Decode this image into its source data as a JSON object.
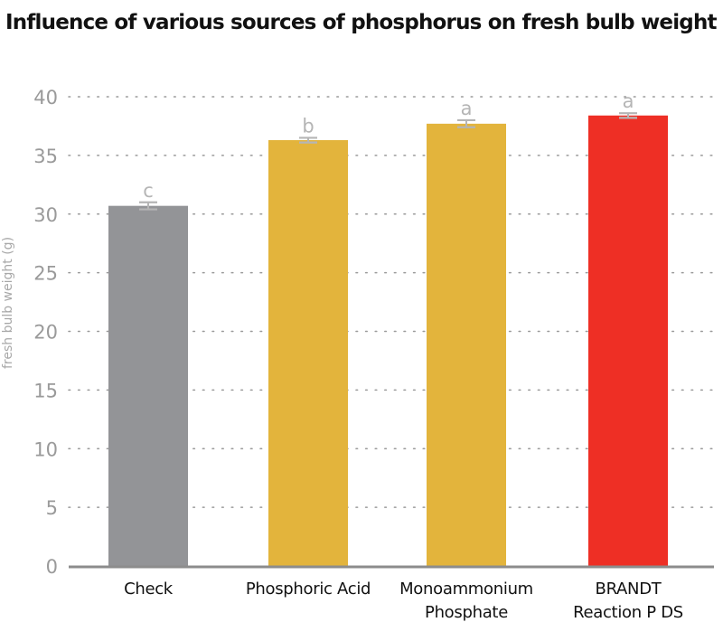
{
  "title": "Influence of various sources of phosphorus on fresh bulb weight",
  "chart_data": {
    "type": "bar",
    "title": "Influence of various sources of phosphorus on fresh bulb weight",
    "xlabel": "",
    "ylabel": "fresh bulb weight  (g)",
    "ylim": [
      0,
      40
    ],
    "yticks": [
      0,
      5,
      10,
      15,
      20,
      25,
      30,
      35,
      40
    ],
    "grid": true,
    "categories": [
      [
        "Check"
      ],
      [
        "Phosphoric Acid"
      ],
      [
        "Monoammonium",
        "Phosphate"
      ],
      [
        "BRANDT",
        "Reaction P DS"
      ]
    ],
    "values": [
      30.7,
      36.3,
      37.7,
      38.4
    ],
    "errors": [
      0.3,
      0.2,
      0.3,
      0.2
    ],
    "significance": [
      "c",
      "b",
      "a",
      "a"
    ],
    "colors": [
      "#939497",
      "#e3b43c",
      "#e3b43c",
      "#ee2f25"
    ],
    "axis_color": "#8c8c8c",
    "grid_color": "#9a9a9a",
    "error_bar_color": "#b5b5b5"
  }
}
